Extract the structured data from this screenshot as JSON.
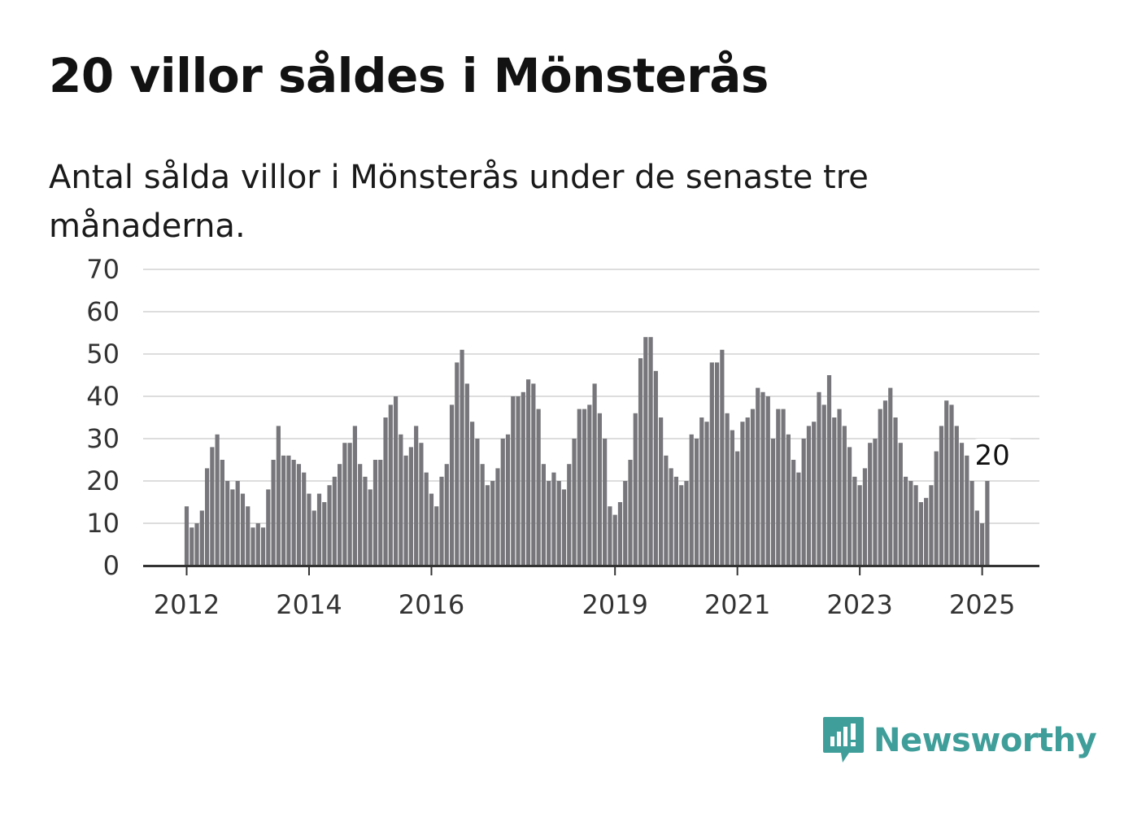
{
  "title": "20 villor såldes i Mönsterås",
  "subtitle": "Antal sålda villor i Mönsterås under de senaste tre månaderna.",
  "brand": {
    "name": "Newsworthy",
    "color": "#3f9e9a",
    "icon": "chart-bubble-icon"
  },
  "chart_data": {
    "type": "bar",
    "title": "20 villor såldes i Mönsterås",
    "xlabel": "",
    "ylabel": "",
    "ylim": [
      0,
      70
    ],
    "yticks": [
      0,
      10,
      20,
      30,
      40,
      50,
      60,
      70
    ],
    "xticks": [
      "2012",
      "2014",
      "2016",
      "2019",
      "2021",
      "2023",
      "2025"
    ],
    "grid": true,
    "start": "2012-01",
    "bar_color": "#77767b",
    "highlight_color": "#1d9a9a",
    "highlight": {
      "period": "2025-03",
      "value": 20,
      "label": "20"
    },
    "values": [
      14,
      9,
      10,
      13,
      23,
      28,
      31,
      25,
      20,
      18,
      20,
      17,
      14,
      9,
      10,
      9,
      18,
      25,
      33,
      26,
      26,
      25,
      24,
      22,
      17,
      13,
      17,
      15,
      19,
      21,
      24,
      29,
      29,
      33,
      24,
      21,
      18,
      25,
      25,
      35,
      38,
      40,
      31,
      26,
      28,
      33,
      29,
      22,
      17,
      14,
      21,
      24,
      38,
      48,
      51,
      43,
      34,
      30,
      24,
      19,
      20,
      23,
      30,
      31,
      40,
      40,
      41,
      44,
      43,
      37,
      24,
      20,
      22,
      20,
      18,
      24,
      30,
      37,
      37,
      38,
      43,
      36,
      30,
      14,
      12,
      15,
      20,
      25,
      36,
      49,
      54,
      54,
      46,
      35,
      26,
      23,
      21,
      19,
      20,
      31,
      30,
      35,
      34,
      48,
      48,
      51,
      36,
      32,
      27,
      34,
      35,
      37,
      42,
      41,
      40,
      30,
      37,
      37,
      31,
      25,
      22,
      30,
      33,
      34,
      41,
      38,
      45,
      35,
      37,
      33,
      28,
      21,
      19,
      23,
      29,
      30,
      37,
      39,
      42,
      35,
      29,
      21,
      20,
      19,
      15,
      16,
      19,
      27,
      33,
      39,
      38,
      33,
      29,
      26,
      20,
      13,
      10,
      20
    ]
  }
}
